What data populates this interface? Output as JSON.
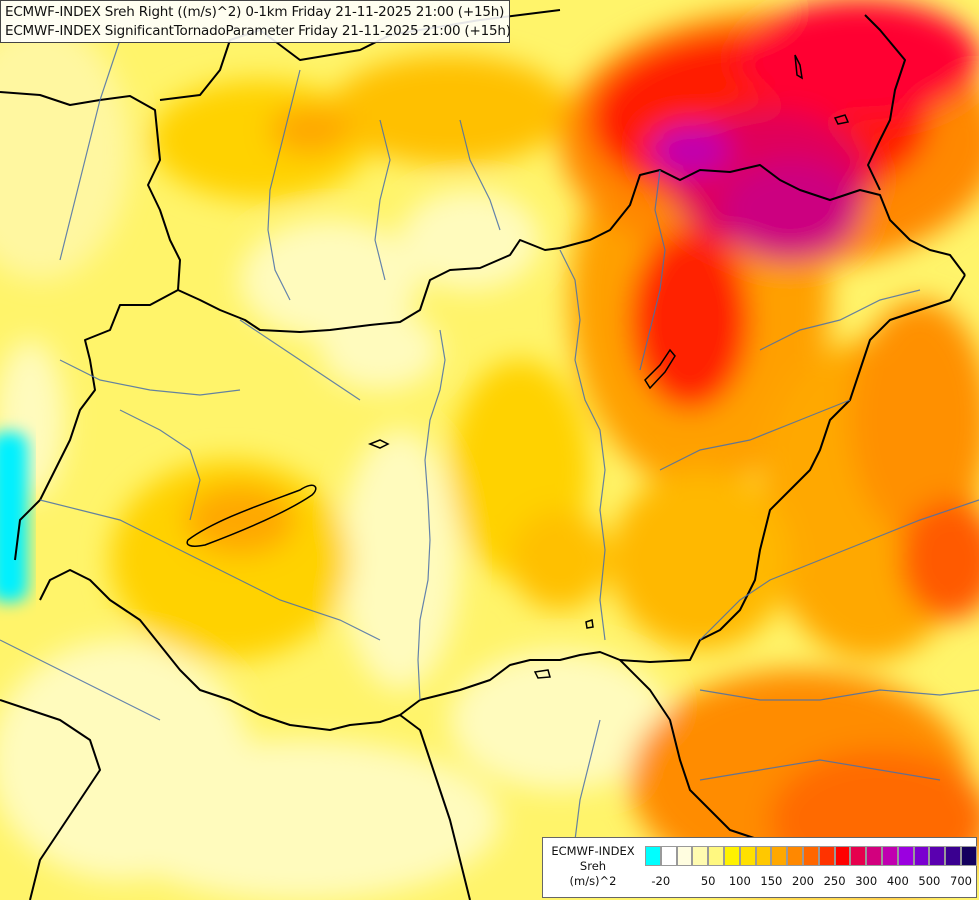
{
  "title": {
    "line1": "ECMWF-INDEX Sreh Right ((m/s)^2) 0-1km Friday 21-11-2025 21:00 (+15h)",
    "line2": "ECMWF-INDEX SignificantTornadoParameter Friday 21-11-2025 21:00 (+15h)"
  },
  "legend": {
    "line1": "ECMWF-INDEX",
    "line2": "Sreh",
    "line3": "(m/s)^2",
    "colors": [
      "#00ffff",
      "#ffffff",
      "#fffde0",
      "#fffbb0",
      "#fff880",
      "#fff200",
      "#ffe000",
      "#ffc800",
      "#ffa800",
      "#ff8800",
      "#ff6600",
      "#ff3300",
      "#ff0000",
      "#e6004d",
      "#d2007e",
      "#c000b0",
      "#9b00e0",
      "#7a00d0",
      "#5a00b0",
      "#3a0090",
      "#14005e"
    ],
    "ticks": [
      "-20",
      "50",
      "100",
      "150",
      "200",
      "250",
      "300",
      "400",
      "500",
      "700"
    ]
  }
}
